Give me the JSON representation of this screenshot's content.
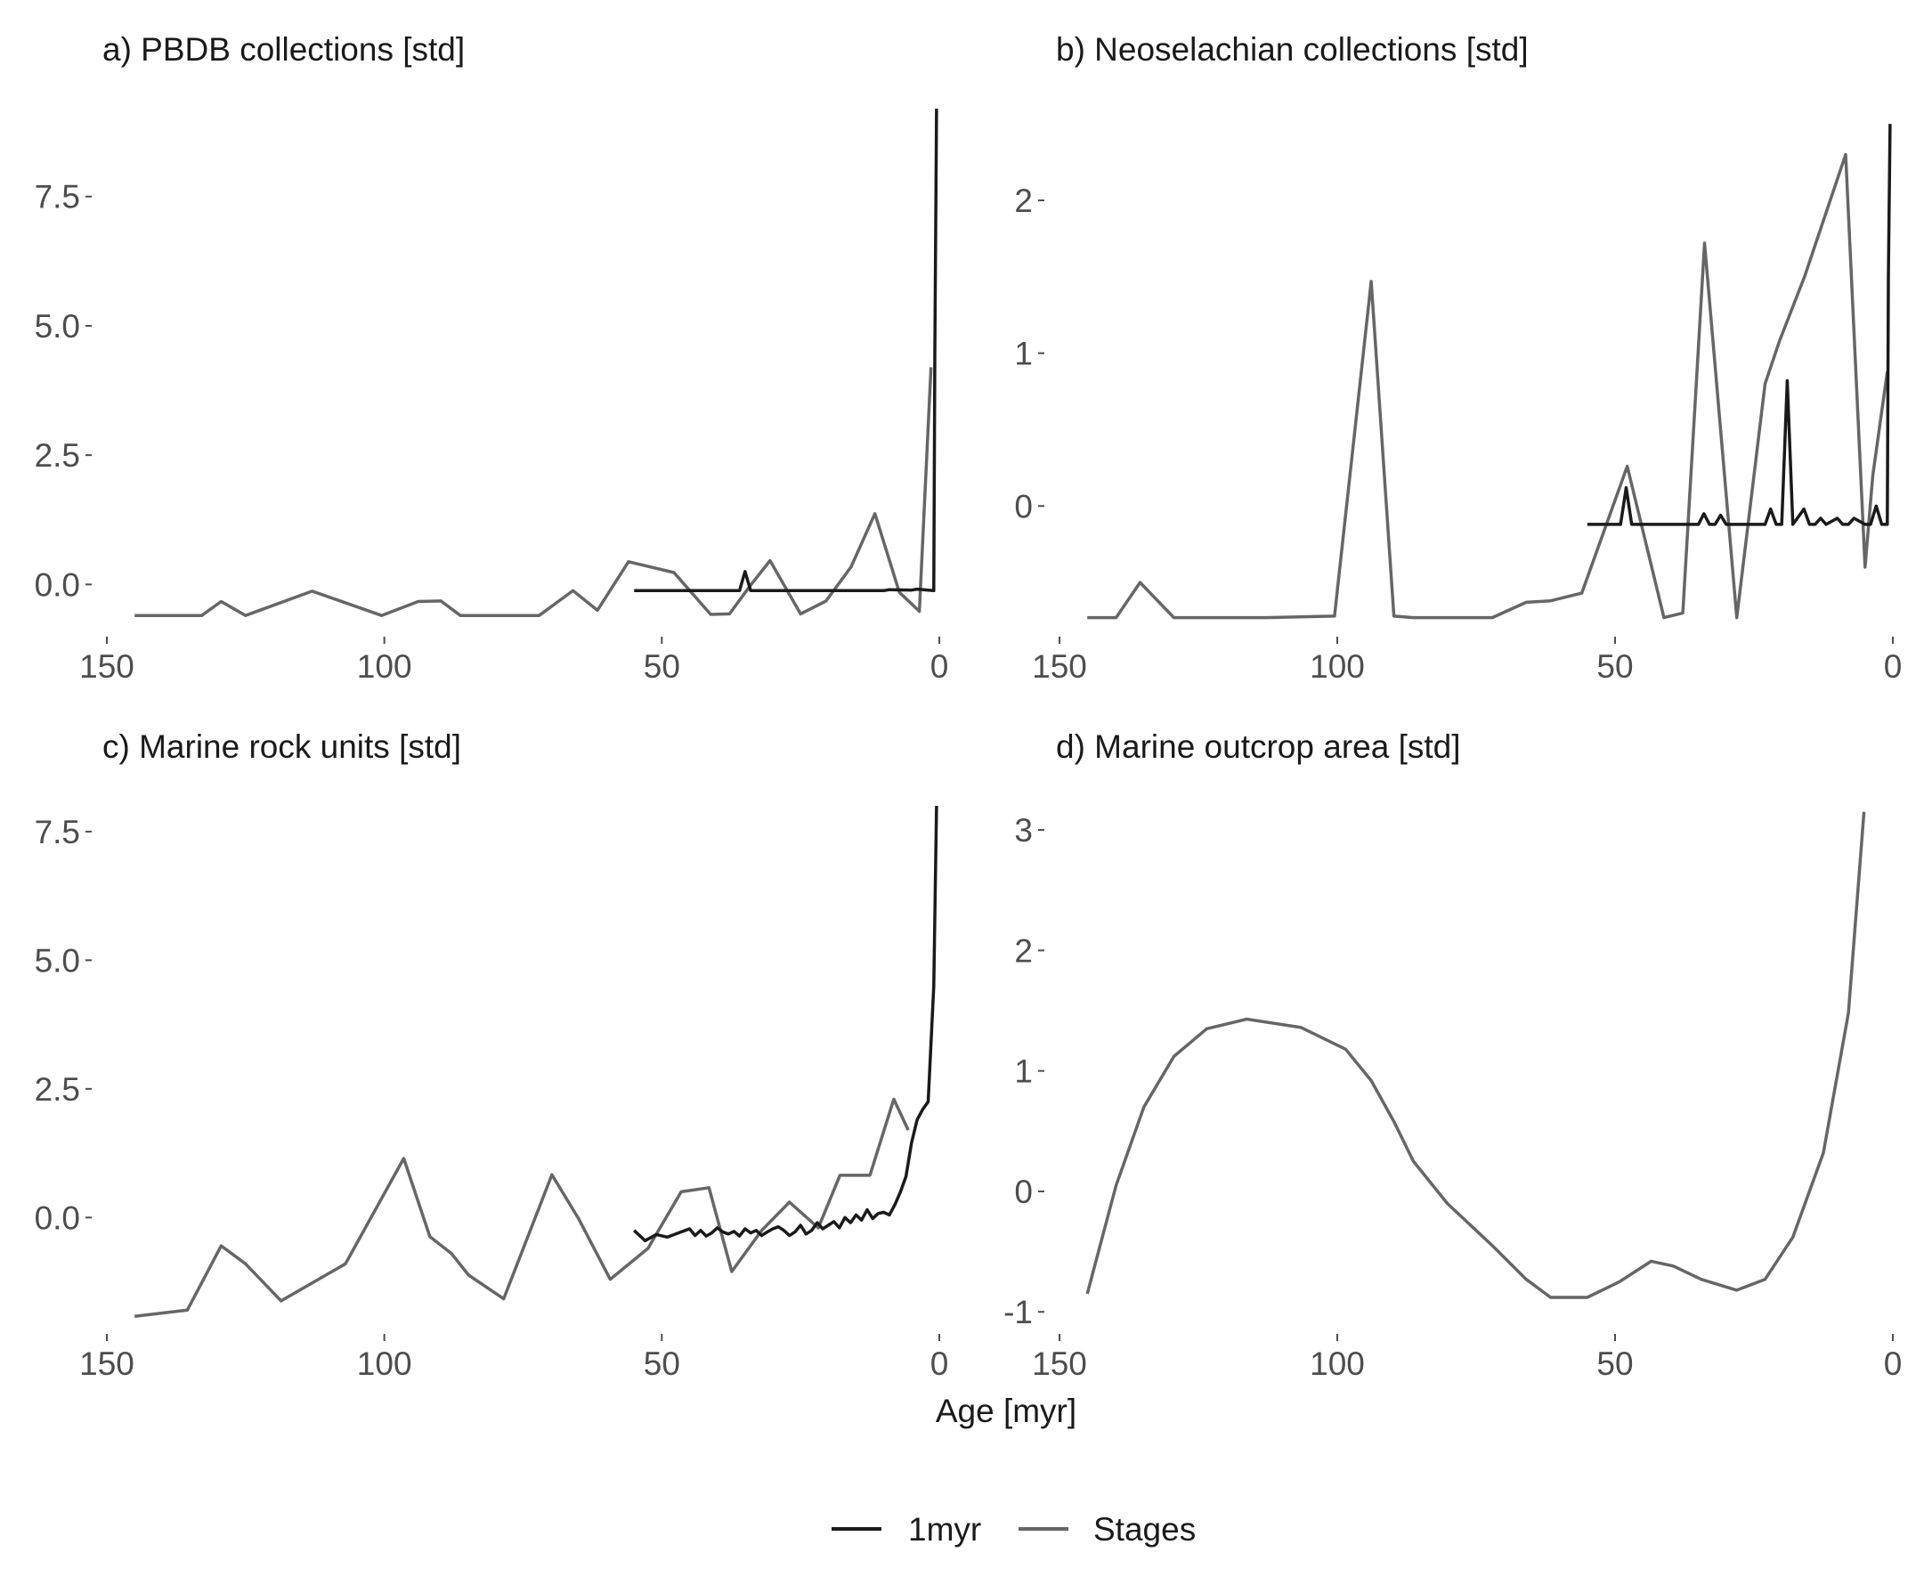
{
  "figure": {
    "xlabel": "Age [myr]",
    "legend": {
      "position": "bottom",
      "entries": [
        {
          "label": "1myr",
          "color": "#1a1a1a"
        },
        {
          "label": "Stages",
          "color": "#666666"
        }
      ]
    }
  },
  "chart_data": [
    {
      "type": "line",
      "title": "a) PBDB collections [std]",
      "xlim": [
        150,
        0
      ],
      "ylim": [
        -0.7,
        9.2
      ],
      "x_ticks": [
        150,
        100,
        50,
        0
      ],
      "y_ticks": [
        0.0,
        2.5,
        5.0,
        7.5
      ],
      "y_tick_labels": [
        "0.0",
        "2.5",
        "5.0",
        "7.5"
      ],
      "grid": false,
      "series": [
        {
          "name": "Stages",
          "color": "#666666",
          "points": [
            [
              145,
              -0.6
            ],
            [
              139.8,
              -0.6
            ],
            [
              132.9,
              -0.6
            ],
            [
              129.4,
              -0.33
            ],
            [
              125,
              -0.6
            ],
            [
              113,
              -0.13
            ],
            [
              100.5,
              -0.6
            ],
            [
              93.9,
              -0.33
            ],
            [
              89.8,
              -0.32
            ],
            [
              86.3,
              -0.6
            ],
            [
              83.6,
              -0.6
            ],
            [
              72.1,
              -0.6
            ],
            [
              66,
              -0.12
            ],
            [
              61.6,
              -0.5
            ],
            [
              56,
              0.44
            ],
            [
              47.8,
              0.23
            ],
            [
              41.2,
              -0.58
            ],
            [
              37.8,
              -0.57
            ],
            [
              33.9,
              0.0
            ],
            [
              30.5,
              0.46
            ],
            [
              25,
              -0.57
            ],
            [
              20.4,
              -0.32
            ],
            [
              15.9,
              0.34
            ],
            [
              11.6,
              1.37
            ],
            [
              7.2,
              -0.15
            ],
            [
              3.6,
              -0.52
            ],
            [
              1.5,
              4.2
            ]
          ]
        },
        {
          "name": "1myr",
          "color": "#1a1a1a",
          "points": [
            [
              55,
              -0.12
            ],
            [
              36,
              -0.12
            ],
            [
              35,
              0.25
            ],
            [
              34,
              -0.12
            ],
            [
              10,
              -0.12
            ],
            [
              9,
              -0.1
            ],
            [
              5,
              -0.11
            ],
            [
              4,
              -0.09
            ],
            [
              2,
              -0.11
            ],
            [
              1,
              -0.12
            ],
            [
              0.8,
              4.5
            ],
            [
              0.5,
              9.2
            ]
          ]
        }
      ]
    },
    {
      "type": "line",
      "title": "b) Neoselachian collections [std]",
      "xlim": [
        150,
        0
      ],
      "ylim": [
        -0.75,
        2.6
      ],
      "x_ticks": [
        150,
        100,
        50,
        0
      ],
      "y_ticks": [
        0,
        1,
        2
      ],
      "y_tick_labels": [
        "0",
        "1",
        "2"
      ],
      "grid": false,
      "series": [
        {
          "name": "Stages",
          "color": "#666666",
          "points": [
            [
              145,
              -0.73
            ],
            [
              139.8,
              -0.73
            ],
            [
              135.5,
              -0.5
            ],
            [
              129.4,
              -0.73
            ],
            [
              125,
              -0.73
            ],
            [
              113,
              -0.73
            ],
            [
              100.5,
              -0.72
            ],
            [
              93.9,
              1.47
            ],
            [
              89.8,
              -0.72
            ],
            [
              86.3,
              -0.73
            ],
            [
              72.1,
              -0.73
            ],
            [
              66,
              -0.63
            ],
            [
              61.6,
              -0.62
            ],
            [
              56,
              -0.57
            ],
            [
              47.8,
              0.26
            ],
            [
              41.2,
              -0.73
            ],
            [
              37.8,
              -0.7
            ],
            [
              33.9,
              1.72
            ],
            [
              28.1,
              -0.73
            ],
            [
              23,
              0.8
            ],
            [
              20.4,
              1.08
            ],
            [
              15.9,
              1.5
            ],
            [
              8.5,
              2.3
            ],
            [
              5,
              -0.4
            ],
            [
              3.6,
              0.2
            ],
            [
              1,
              0.88
            ]
          ]
        },
        {
          "name": "1myr",
          "color": "#1a1a1a",
          "points": [
            [
              55,
              -0.12
            ],
            [
              49,
              -0.12
            ],
            [
              48,
              0.12
            ],
            [
              47,
              -0.12
            ],
            [
              35,
              -0.12
            ],
            [
              34,
              -0.05
            ],
            [
              33,
              -0.12
            ],
            [
              32,
              -0.12
            ],
            [
              31,
              -0.06
            ],
            [
              30,
              -0.12
            ],
            [
              23,
              -0.12
            ],
            [
              22,
              -0.02
            ],
            [
              21,
              -0.12
            ],
            [
              20,
              -0.12
            ],
            [
              19,
              0.82
            ],
            [
              18,
              -0.12
            ],
            [
              16,
              -0.02
            ],
            [
              15,
              -0.12
            ],
            [
              14,
              -0.12
            ],
            [
              13,
              -0.08
            ],
            [
              12,
              -0.12
            ],
            [
              10,
              -0.08
            ],
            [
              9,
              -0.12
            ],
            [
              8,
              -0.12
            ],
            [
              7,
              -0.08
            ],
            [
              6,
              -0.1
            ],
            [
              5,
              -0.12
            ],
            [
              4,
              -0.12
            ],
            [
              3,
              0.0
            ],
            [
              2,
              -0.12
            ],
            [
              1,
              -0.12
            ],
            [
              0.8,
              1.5
            ],
            [
              0.5,
              2.5
            ]
          ]
        }
      ]
    },
    {
      "type": "line",
      "title": "c) Marine rock units [std]",
      "xlim": [
        150,
        0
      ],
      "ylim": [
        -1.95,
        8.0
      ],
      "x_ticks": [
        150,
        100,
        50,
        0
      ],
      "y_ticks": [
        0.0,
        2.5,
        5.0,
        7.5
      ],
      "y_tick_labels": [
        "0.0",
        "2.5",
        "5.0",
        "7.5"
      ],
      "grid": false,
      "series": [
        {
          "name": "Stages",
          "color": "#666666",
          "points": [
            [
              145,
              -1.92
            ],
            [
              135.5,
              -1.8
            ],
            [
              129.4,
              -0.55
            ],
            [
              125,
              -0.9
            ],
            [
              118.6,
              -1.62
            ],
            [
              107,
              -0.9
            ],
            [
              96.5,
              1.15
            ],
            [
              91.8,
              -0.37
            ],
            [
              87.9,
              -0.7
            ],
            [
              84.8,
              -1.12
            ],
            [
              78.5,
              -1.58
            ],
            [
              69.8,
              0.83
            ],
            [
              65,
              -0.02
            ],
            [
              59.3,
              -1.2
            ],
            [
              52.5,
              -0.6
            ],
            [
              46.5,
              0.5
            ],
            [
              41.5,
              0.58
            ],
            [
              37.4,
              -1.05
            ],
            [
              32,
              -0.25
            ],
            [
              27,
              0.3
            ],
            [
              21.8,
              -0.2
            ],
            [
              17.9,
              0.82
            ],
            [
              12.5,
              0.82
            ],
            [
              8.2,
              2.3
            ],
            [
              5.6,
              1.7
            ]
          ]
        },
        {
          "name": "1myr",
          "color": "#1a1a1a",
          "points": [
            [
              55,
              -0.25
            ],
            [
              53,
              -0.45
            ],
            [
              51,
              -0.33
            ],
            [
              49,
              -0.38
            ],
            [
              47,
              -0.3
            ],
            [
              45,
              -0.22
            ],
            [
              44,
              -0.35
            ],
            [
              43,
              -0.25
            ],
            [
              42,
              -0.36
            ],
            [
              41,
              -0.3
            ],
            [
              40,
              -0.2
            ],
            [
              39,
              -0.28
            ],
            [
              38,
              -0.32
            ],
            [
              37,
              -0.27
            ],
            [
              36,
              -0.36
            ],
            [
              35,
              -0.22
            ],
            [
              34,
              -0.3
            ],
            [
              33,
              -0.25
            ],
            [
              32,
              -0.35
            ],
            [
              31,
              -0.28
            ],
            [
              30,
              -0.22
            ],
            [
              29,
              -0.18
            ],
            [
              28,
              -0.25
            ],
            [
              27,
              -0.35
            ],
            [
              26,
              -0.28
            ],
            [
              25,
              -0.15
            ],
            [
              24,
              -0.32
            ],
            [
              23,
              -0.25
            ],
            [
              22,
              -0.1
            ],
            [
              21,
              -0.22
            ],
            [
              20,
              -0.15
            ],
            [
              19,
              -0.08
            ],
            [
              18,
              -0.2
            ],
            [
              17,
              0.0
            ],
            [
              16,
              -0.1
            ],
            [
              15,
              0.05
            ],
            [
              14,
              -0.05
            ],
            [
              13,
              0.15
            ],
            [
              12,
              -0.02
            ],
            [
              11,
              0.08
            ],
            [
              10,
              0.1
            ],
            [
              9,
              0.05
            ],
            [
              8,
              0.25
            ],
            [
              7,
              0.5
            ],
            [
              6,
              0.8
            ],
            [
              5,
              1.45
            ],
            [
              4,
              1.9
            ],
            [
              3,
              2.1
            ],
            [
              2,
              2.25
            ],
            [
              1,
              4.5
            ],
            [
              0.5,
              8.0
            ]
          ]
        }
      ]
    },
    {
      "type": "line",
      "title": "d) Marine outcrop area [std]",
      "xlim": [
        150,
        0
      ],
      "ylim": [
        -1.05,
        3.2
      ],
      "x_ticks": [
        150,
        100,
        50,
        0
      ],
      "y_ticks": [
        -1,
        0,
        1,
        2,
        3
      ],
      "y_tick_labels": [
        "-1",
        "0",
        "1",
        "2",
        "3"
      ],
      "grid": false,
      "series": [
        {
          "name": "Stages",
          "color": "#666666",
          "points": [
            [
              145,
              -0.85
            ],
            [
              139.8,
              0.05
            ],
            [
              134.8,
              0.7
            ],
            [
              129.4,
              1.12
            ],
            [
              123.5,
              1.35
            ],
            [
              116.3,
              1.43
            ],
            [
              106.5,
              1.36
            ],
            [
              98.5,
              1.18
            ],
            [
              93.9,
              0.92
            ],
            [
              89.8,
              0.58
            ],
            [
              86.3,
              0.25
            ],
            [
              80.2,
              -0.1
            ],
            [
              72.1,
              -0.45
            ],
            [
              66,
              -0.73
            ],
            [
              61.6,
              -0.88
            ],
            [
              55,
              -0.88
            ],
            [
              49.2,
              -0.75
            ],
            [
              43.5,
              -0.58
            ],
            [
              39.5,
              -0.62
            ],
            [
              34.5,
              -0.73
            ],
            [
              28.1,
              -0.82
            ],
            [
              23,
              -0.73
            ],
            [
              18,
              -0.38
            ],
            [
              12.5,
              0.32
            ],
            [
              8,
              1.48
            ],
            [
              5.2,
              3.15
            ]
          ]
        }
      ]
    }
  ]
}
